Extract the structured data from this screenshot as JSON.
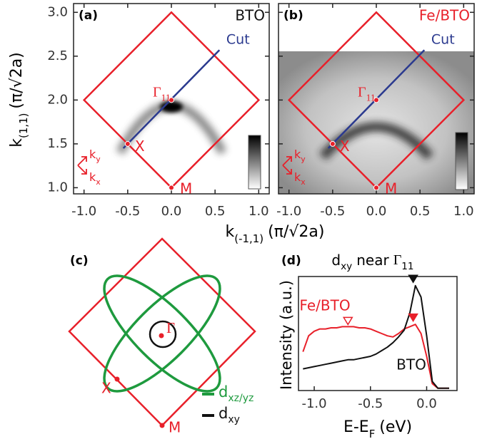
{
  "figure": {
    "x_label": {
      "main": "k",
      "sub": "(-1,1)",
      "unit": "(π/√2a)"
    },
    "y_label": {
      "main": "k",
      "sub": "(1,1)",
      "unit": "(π/√2a)"
    }
  },
  "chart_data": [
    {
      "type": "map",
      "panel": "(a)",
      "sample": "BTO",
      "sample_color": "#111111",
      "xlim": [
        -1.12,
        1.12
      ],
      "ylim": [
        0.93,
        3.1
      ],
      "xticks": [
        {
          "value": -1,
          "label": "-1.0"
        },
        -0.5,
        {
          "value": 0,
          "label": "0.0"
        },
        0.5,
        {
          "value": 1,
          "label": "1.0"
        }
      ],
      "yticks": [
        {
          "value": 1,
          "label": "1.0"
        },
        1.5,
        {
          "value": 2,
          "label": "2.0"
        },
        2.5,
        {
          "value": 3,
          "label": "3.0"
        }
      ],
      "zone": {
        "color": "#e8202a",
        "x": [
          0,
          1,
          0,
          -1
        ],
        "y": [
          1,
          2,
          3,
          2
        ]
      },
      "cut": {
        "name": "Cut",
        "color": "#2b3a8f",
        "x": [
          -0.55,
          0.55
        ],
        "y": [
          1.45,
          2.57
        ]
      },
      "points": [
        {
          "label": "Γ",
          "sub": "11",
          "x": 0,
          "y": 2
        },
        {
          "label": "X",
          "x": -0.5,
          "y": 1.5
        },
        {
          "label": "M",
          "x": 0,
          "y": 1
        }
      ],
      "axis_icon": [
        {
          "main": "k",
          "sub": "y"
        },
        {
          "main": "k",
          "sub": "x"
        }
      ]
    },
    {
      "type": "map",
      "panel": "(b)",
      "sample": "Fe/BTO",
      "sample_color": "#e8202a",
      "xlim": [
        -1.12,
        1.12
      ],
      "ylim": [
        0.93,
        3.1
      ],
      "xticks": [
        {
          "value": -1,
          "label": "-1.0"
        },
        -0.5,
        {
          "value": 0,
          "label": "0.0"
        },
        0.5,
        {
          "value": 1,
          "label": "1.0"
        }
      ],
      "yticks": [
        1,
        1.5,
        2,
        2.5,
        3
      ],
      "zone": {
        "color": "#e8202a",
        "x": [
          0,
          1,
          0,
          -1
        ],
        "y": [
          1,
          2,
          3,
          2
        ]
      },
      "cut": {
        "name": "Cut",
        "color": "#2b3a8f",
        "x": [
          -0.55,
          0.55
        ],
        "y": [
          1.45,
          2.57
        ]
      },
      "points": [
        {
          "label": "Γ",
          "sub": "11",
          "x": 0,
          "y": 2
        },
        {
          "label": "X",
          "x": -0.5,
          "y": 1.5
        },
        {
          "label": "M",
          "x": 0,
          "y": 1
        }
      ],
      "axis_icon": [
        {
          "main": "k",
          "sub": "y"
        },
        {
          "main": "k",
          "sub": "x"
        }
      ]
    },
    {
      "type": "schematic",
      "panel": "(c)",
      "points": [
        {
          "label": "Γ"
        },
        {
          "label": "X"
        },
        {
          "label": "M"
        }
      ],
      "legend": [
        {
          "main": "d",
          "sub": "xz/yz",
          "color": "#1e9a3e"
        },
        {
          "main": "d",
          "sub": "xy",
          "color": "#111111"
        }
      ]
    },
    {
      "type": "line",
      "panel": "(d)",
      "title": {
        "main": "d",
        "sub": "xy",
        "text": "near",
        "symbol": "Γ",
        "symbol_sub": "11"
      },
      "x_label": {
        "main": "E-E",
        "sub": "F",
        "unit": "(eV)"
      },
      "y_label": "Intensity (a.u.)",
      "xlim": [
        -1.14,
        0.27
      ],
      "ylim": [
        0,
        1
      ],
      "xticks": [
        {
          "value": -1,
          "label": "-1.0"
        },
        -0.5,
        {
          "value": 0,
          "label": "0.0"
        }
      ],
      "x": [
        -1.1,
        -1.05,
        -1,
        -0.95,
        -0.9,
        -0.85,
        -0.8,
        -0.75,
        -0.7,
        -0.65,
        -0.6,
        -0.55,
        -0.5,
        -0.45,
        -0.4,
        -0.35,
        -0.3,
        -0.25,
        -0.2,
        -0.15,
        -0.1,
        -0.05,
        0,
        0.05,
        0.1,
        0.15,
        0.2
      ],
      "series": [
        {
          "name": "Fe/BTO",
          "color": "#e8202a",
          "values": [
            0.34,
            0.48,
            0.52,
            0.54,
            0.54,
            0.55,
            0.55,
            0.56,
            0.56,
            0.56,
            0.55,
            0.55,
            0.54,
            0.52,
            0.5,
            0.48,
            0.47,
            0.5,
            0.54,
            0.56,
            0.58,
            0.5,
            0.3,
            0.06,
            0.02,
            0.02,
            0.02
          ]
        },
        {
          "name": "BTO",
          "color": "#111111",
          "values": [
            0.19,
            0.2,
            0.21,
            0.22,
            0.23,
            0.24,
            0.25,
            0.26,
            0.27,
            0.27,
            0.28,
            0.29,
            0.3,
            0.32,
            0.35,
            0.38,
            0.42,
            0.47,
            0.53,
            0.68,
            0.92,
            0.82,
            0.48,
            0.08,
            0.02,
            0.02,
            0.02
          ]
        }
      ],
      "markers": [
        {
          "x": -0.12,
          "y": 0.98,
          "color": "#111111",
          "filled": true
        },
        {
          "x": -0.12,
          "y": 0.64,
          "color": "#e8202a",
          "filled": true
        },
        {
          "x": -0.7,
          "y": 0.61,
          "color": "#e8202a",
          "filled": false
        }
      ]
    }
  ]
}
